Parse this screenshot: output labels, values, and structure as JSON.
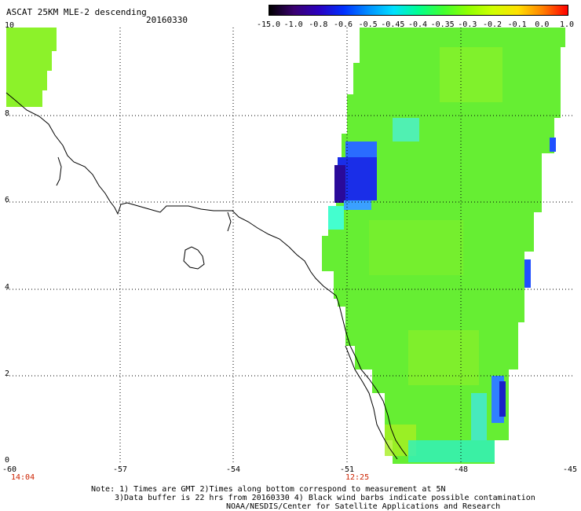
{
  "header": {
    "title": "ASCAT 25KM MLE-2 descending",
    "date": "20160330"
  },
  "colorbar": {
    "ticks": [
      "-15.0",
      "-1.0",
      "-0.8",
      "-0.6",
      "-0.5",
      "-0.45",
      "-0.4",
      "-0.35",
      "-0.3",
      "-0.2",
      "-0.1",
      "0.0",
      "1.0"
    ],
    "colors": [
      "#000000",
      "#3a0070",
      "#2a00c0",
      "#0030ff",
      "#0090ff",
      "#00e0ff",
      "#00ff90",
      "#40ff30",
      "#90ff00",
      "#d0ff00",
      "#ffe000",
      "#ff8000",
      "#ff0000"
    ]
  },
  "axes": {
    "lat_labels": [
      "10",
      "8",
      "6",
      "4",
      "2",
      "0"
    ],
    "lon_labels": [
      "-60",
      "-57",
      "-54",
      "-51",
      "-48",
      "-45"
    ],
    "grid": true
  },
  "times": {
    "left": "14:04",
    "right": "12:25"
  },
  "notes": {
    "line1": "Note: 1) Times are GMT 2)Times along bottom correspond to measurement at 5N",
    "line2": "3)Data buffer is 22 hrs from 20160330 4) Black wind barbs indicate possible contamination",
    "line3": "NOAA/NESDIS/Center for Satellite Applications and Research"
  }
}
